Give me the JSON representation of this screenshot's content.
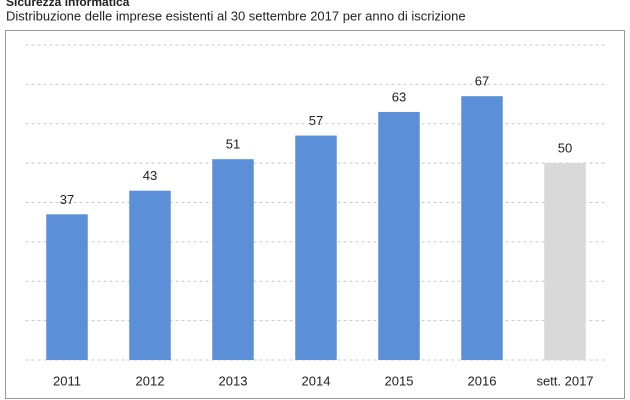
{
  "chart_data": {
    "type": "bar",
    "title": "Sicurezza informatica",
    "subtitle": "Distribuzione delle imprese esistenti al 30 settembre 2017 per anno di iscrizione",
    "categories": [
      "2011",
      "2012",
      "2013",
      "2014",
      "2015",
      "2016",
      "sett. 2017"
    ],
    "values": [
      37,
      43,
      51,
      57,
      63,
      67,
      50
    ],
    "colors": [
      "#5b8fd8",
      "#5b8fd8",
      "#5b8fd8",
      "#5b8fd8",
      "#5b8fd8",
      "#5b8fd8",
      "#d9d9d9"
    ],
    "ylim": [
      0,
      80
    ],
    "yticks": [
      0,
      10,
      20,
      30,
      40,
      50,
      60,
      70,
      80
    ],
    "grid": true
  }
}
